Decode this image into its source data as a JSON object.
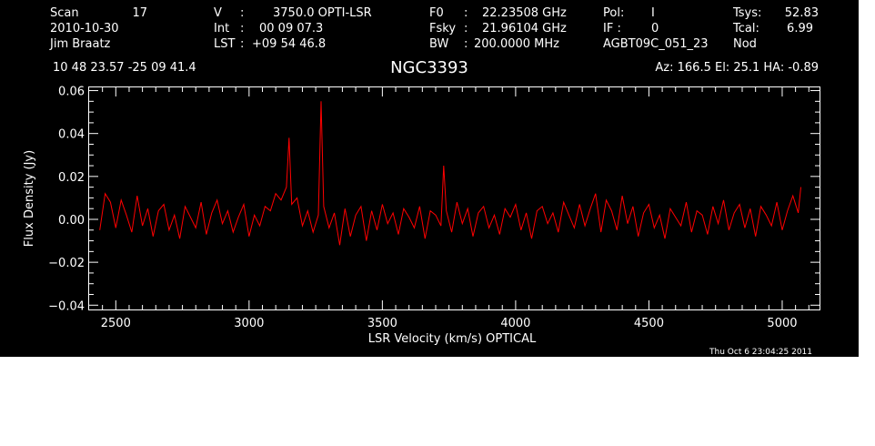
{
  "header": {
    "col1": [
      "Scan",
      "17",
      "2010-10-30",
      "Jim Braatz"
    ],
    "col2": [
      "V",
      ":",
      "3750.0 OPTI-LSR",
      "Int",
      ":",
      "00 09 07.3",
      "LST",
      ":",
      "+09 54 46.8"
    ],
    "col3": [
      "F0",
      ":",
      "22.23508 GHz",
      "Fsky",
      ":",
      "21.96104 GHz",
      "BW",
      ":",
      "200.0000 MHz"
    ],
    "col4": [
      "Pol:",
      "I",
      "IF :",
      "0",
      "AGBT09C_051_23"
    ],
    "col5": [
      "Tsys:",
      "52.83",
      "Tcal:",
      "6.99",
      "Nod"
    ],
    "coords": "10 48 23.57   -25 09 41.4",
    "object": "NGC3393",
    "pointing": "Az: 166.5   El:  25.1   HA: -0.89"
  },
  "timestamp": "Thu Oct  6 23:04:25 2011",
  "colors": {
    "background": "#000000",
    "axes": "#ffffff",
    "trace": "#ff0000"
  },
  "chart_data": {
    "type": "line",
    "title": "NGC3393",
    "xlabel": "LSR Velocity (km/s) OPTICAL",
    "ylabel": "Flux Density (Jy)",
    "xlim": [
      2400,
      5140
    ],
    "ylim": [
      -0.042,
      0.0615
    ],
    "xticks": [
      "2500",
      "3000",
      "3500",
      "4000",
      "4500",
      "5000"
    ],
    "yticks": [
      "−0.04",
      "−0.02",
      "0.00",
      "0.02",
      "0.04",
      "0.06"
    ],
    "grid": false,
    "legend": "none",
    "series": [
      {
        "color": "#ff0000",
        "x": [
          2440,
          2460,
          2480,
          2500,
          2520,
          2540,
          2560,
          2580,
          2600,
          2620,
          2640,
          2660,
          2680,
          2700,
          2720,
          2740,
          2760,
          2780,
          2800,
          2820,
          2840,
          2860,
          2880,
          2900,
          2920,
          2940,
          2960,
          2980,
          3000,
          3020,
          3040,
          3060,
          3080,
          3100,
          3120,
          3140,
          3150,
          3160,
          3180,
          3200,
          3220,
          3240,
          3260,
          3270,
          3280,
          3300,
          3320,
          3340,
          3360,
          3380,
          3400,
          3420,
          3440,
          3460,
          3480,
          3500,
          3520,
          3540,
          3560,
          3580,
          3600,
          3620,
          3640,
          3660,
          3680,
          3700,
          3720,
          3730,
          3740,
          3760,
          3780,
          3800,
          3820,
          3840,
          3860,
          3880,
          3900,
          3920,
          3940,
          3960,
          3980,
          4000,
          4020,
          4040,
          4060,
          4080,
          4100,
          4120,
          4140,
          4160,
          4180,
          4200,
          4220,
          4240,
          4260,
          4280,
          4300,
          4320,
          4340,
          4360,
          4380,
          4400,
          4420,
          4440,
          4460,
          4480,
          4500,
          4520,
          4540,
          4560,
          4580,
          4600,
          4620,
          4640,
          4660,
          4680,
          4700,
          4720,
          4740,
          4760,
          4780,
          4800,
          4820,
          4840,
          4860,
          4880,
          4900,
          4920,
          4940,
          4960,
          4980,
          5000,
          5020,
          5040,
          5060,
          5070
        ],
        "y": [
          -0.005,
          0.012,
          0.008,
          -0.004,
          0.009,
          0.002,
          -0.006,
          0.011,
          -0.003,
          0.005,
          -0.008,
          0.004,
          0.007,
          -0.005,
          0.002,
          -0.009,
          0.006,
          0.001,
          -0.004,
          0.008,
          -0.007,
          0.003,
          0.009,
          -0.002,
          0.004,
          -0.006,
          0.001,
          0.007,
          -0.008,
          0.002,
          -0.003,
          0.006,
          0.004,
          0.012,
          0.009,
          0.015,
          0.038,
          0.007,
          0.01,
          -0.003,
          0.004,
          -0.006,
          0.002,
          0.055,
          0.006,
          -0.004,
          0.003,
          -0.012,
          0.005,
          -0.008,
          0.002,
          0.006,
          -0.01,
          0.004,
          -0.005,
          0.007,
          -0.002,
          0.003,
          -0.007,
          0.005,
          0.001,
          -0.004,
          0.006,
          -0.009,
          0.004,
          0.002,
          -0.003,
          0.025,
          0.004,
          -0.006,
          0.008,
          -0.002,
          0.005,
          -0.008,
          0.003,
          0.006,
          -0.004,
          0.002,
          -0.007,
          0.005,
          0.001,
          0.007,
          -0.005,
          0.003,
          -0.009,
          0.004,
          0.006,
          -0.002,
          0.003,
          -0.006,
          0.008,
          0.002,
          -0.004,
          0.007,
          -0.003,
          0.005,
          0.012,
          -0.006,
          0.009,
          0.004,
          -0.005,
          0.011,
          -0.002,
          0.006,
          -0.008,
          0.003,
          0.007,
          -0.004,
          0.002,
          -0.009,
          0.005,
          0.001,
          -0.003,
          0.008,
          -0.006,
          0.004,
          0.002,
          -0.007,
          0.006,
          -0.002,
          0.009,
          -0.005,
          0.003,
          0.007,
          -0.004,
          0.005,
          -0.008,
          0.006,
          0.002,
          -0.003,
          0.008,
          -0.005,
          0.004,
          0.011,
          0.003,
          0.015
        ]
      }
    ]
  }
}
